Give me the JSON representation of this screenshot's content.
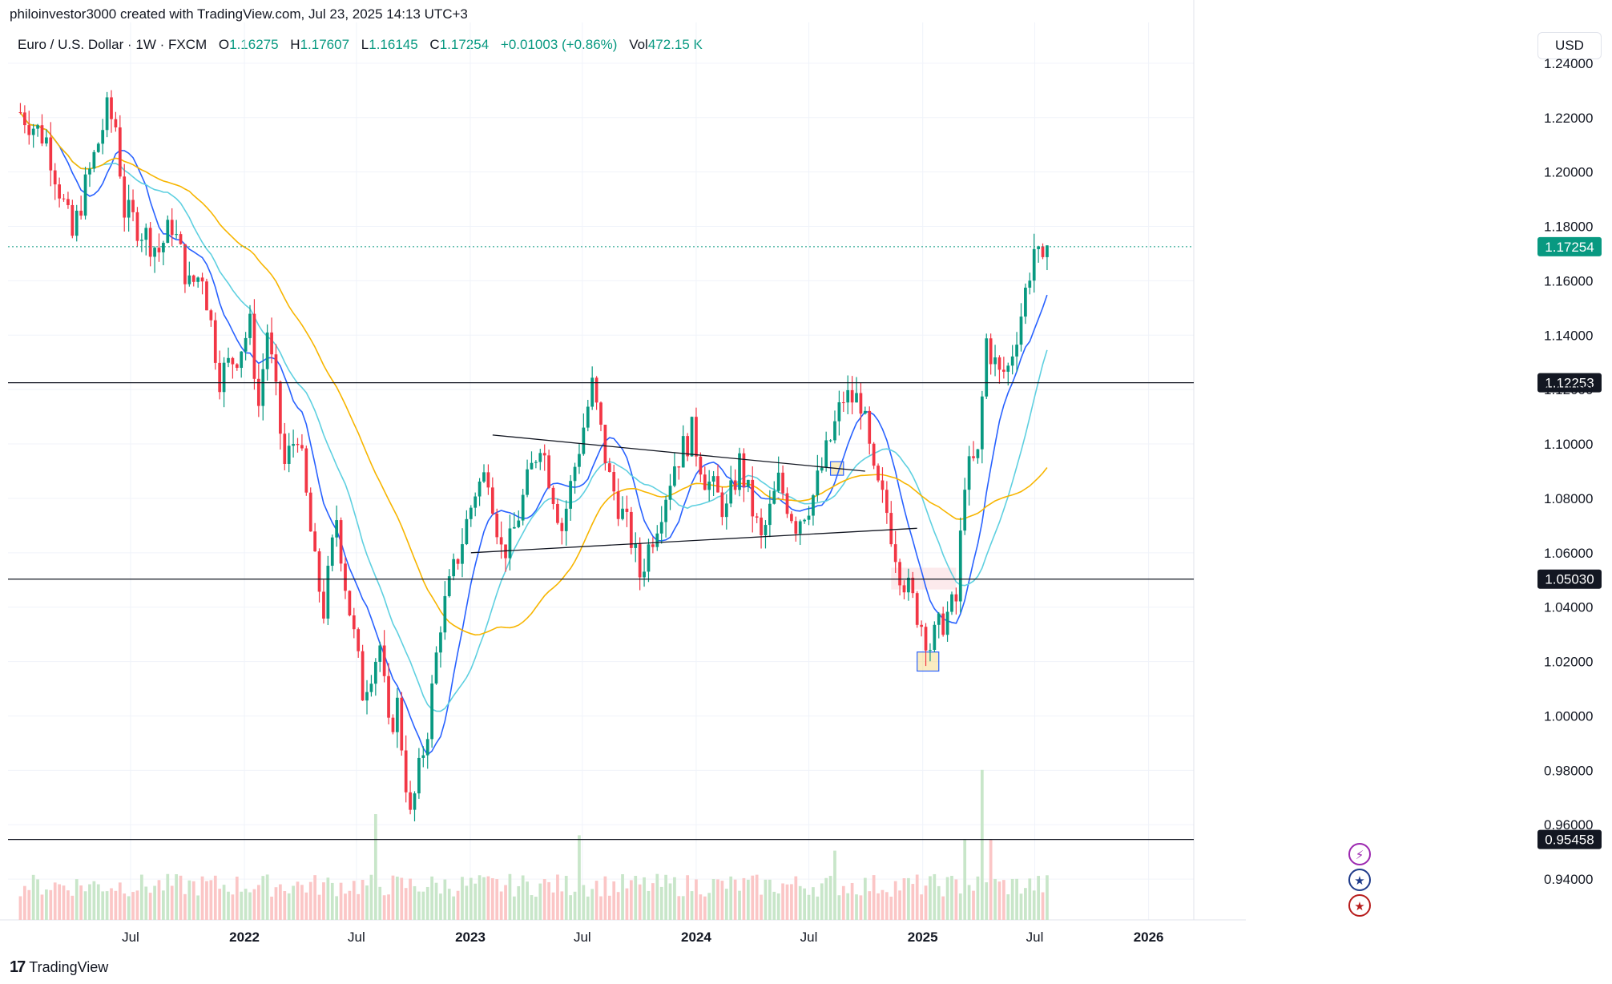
{
  "header": {
    "credit": "philoinvestor3000 created with TradingView.com, Jul 23, 2025 14:13 UTC+3",
    "symbol": "Euro / U.S. Dollar · 1W · FXCM",
    "ohlc": {
      "o_label": "O",
      "o": "1.16275",
      "h_label": "H",
      "h": "1.17607",
      "l_label": "L",
      "l": "1.16145",
      "c_label": "C",
      "c": "1.17254",
      "change": "+0.01003 (+0.86%)",
      "vol_label": "Vol",
      "vol": "472.15 K"
    },
    "currency": "USD"
  },
  "footer": {
    "brand": "TradingView",
    "logo_mark": "17"
  },
  "colors": {
    "up": "#089981",
    "down": "#f23645",
    "vol_up": "#c8e6c9",
    "vol_down": "#fbc6c6",
    "ma_fast": "#2962ff",
    "ma_mid": "#5fd0e0",
    "ma_slow": "#f7b500"
  },
  "chart_data": {
    "type": "candlestick",
    "title": "Euro / U.S. Dollar",
    "interval": "1W",
    "y_ticks": [
      "1.24000",
      "1.22000",
      "1.20000",
      "1.18000",
      "1.16000",
      "1.14000",
      "1.12000",
      "1.10000",
      "1.08000",
      "1.06000",
      "1.04000",
      "1.02000",
      "1.00000",
      "0.98000",
      "0.96000",
      "0.94000"
    ],
    "ylim": [
      0.925,
      1.255
    ],
    "x_ticks": [
      {
        "label": "Jul",
        "date": "2021-07-01",
        "bold": false
      },
      {
        "label": "2022",
        "date": "2022-01-01",
        "bold": true
      },
      {
        "label": "Jul",
        "date": "2022-07-01",
        "bold": false
      },
      {
        "label": "2023",
        "date": "2023-01-01",
        "bold": true
      },
      {
        "label": "Jul",
        "date": "2023-07-01",
        "bold": false
      },
      {
        "label": "2024",
        "date": "2024-01-01",
        "bold": true
      },
      {
        "label": "Jul",
        "date": "2024-07-01",
        "bold": false
      },
      {
        "label": "2025",
        "date": "2025-01-01",
        "bold": true
      },
      {
        "label": "Jul",
        "date": "2025-07-01",
        "bold": false
      },
      {
        "label": "2026",
        "date": "2026-01-01",
        "bold": true
      }
    ],
    "xlim": [
      "2020-12-15",
      "2026-03-15"
    ],
    "horizontal_levels": [
      {
        "value": 1.12253,
        "label": "1.12253"
      },
      {
        "value": 1.0503,
        "label": "1.05030"
      },
      {
        "value": 0.95458,
        "label": "0.95458"
      }
    ],
    "last_price": {
      "value": 1.17254,
      "label": "1.17254"
    },
    "trendlines": [
      {
        "from": [
          "2023-02-06",
          1.1033
        ],
        "to": [
          "2024-09-30",
          1.09
        ]
      },
      {
        "from": [
          "2023-01-02",
          1.06
        ],
        "to": [
          "2024-12-23",
          1.069
        ]
      }
    ],
    "highlight_boxes": [
      {
        "from": [
          "2024-08-05",
          1.0885
        ],
        "to": [
          "2024-08-26",
          1.0935
        ],
        "color": "#f2c94c"
      },
      {
        "from": [
          "2024-12-23",
          1.0165
        ],
        "to": [
          "2025-01-27",
          1.0235
        ],
        "color": "#f2c94c"
      },
      {
        "from": [
          "2024-11-11",
          1.0465
        ],
        "to": [
          "2025-02-24",
          1.0545
        ],
        "color": "#f7c3c8"
      }
    ],
    "price_path": [
      [
        "2021-01-04",
        1.222
      ],
      [
        "2021-02-15",
        1.212
      ],
      [
        "2021-03-29",
        1.176
      ],
      [
        "2021-04-12",
        1.189
      ],
      [
        "2021-05-24",
        1.222
      ],
      [
        "2021-06-07",
        1.217
      ],
      [
        "2021-06-21",
        1.186
      ],
      [
        "2021-08-16",
        1.171
      ],
      [
        "2021-09-06",
        1.181
      ],
      [
        "2021-10-04",
        1.158
      ],
      [
        "2021-10-25",
        1.163
      ],
      [
        "2021-11-22",
        1.125
      ],
      [
        "2021-12-20",
        1.133
      ],
      [
        "2022-01-10",
        1.143
      ],
      [
        "2022-01-24",
        1.114
      ],
      [
        "2022-02-07",
        1.142
      ],
      [
        "2022-03-07",
        1.092
      ],
      [
        "2022-03-28",
        1.105
      ],
      [
        "2022-04-25",
        1.055
      ],
      [
        "2022-05-09",
        1.039
      ],
      [
        "2022-05-30",
        1.073
      ],
      [
        "2022-06-13",
        1.049
      ],
      [
        "2022-07-11",
        1.009
      ],
      [
        "2022-08-08",
        1.026
      ],
      [
        "2022-08-22",
        0.994
      ],
      [
        "2022-09-05",
        1.004
      ],
      [
        "2022-09-26",
        0.962
      ],
      [
        "2022-10-24",
        0.996
      ],
      [
        "2022-11-14",
        1.035
      ],
      [
        "2022-12-12",
        1.059
      ],
      [
        "2023-01-09",
        1.083
      ],
      [
        "2023-01-30",
        1.09
      ],
      [
        "2023-02-20",
        1.061
      ],
      [
        "2023-03-06",
        1.063
      ],
      [
        "2023-04-24",
        1.102
      ],
      [
        "2023-05-29",
        1.069
      ],
      [
        "2023-06-19",
        1.092
      ],
      [
        "2023-07-17",
        1.121
      ],
      [
        "2023-08-14",
        1.087
      ],
      [
        "2023-09-18",
        1.065
      ],
      [
        "2023-10-02",
        1.052
      ],
      [
        "2023-10-30",
        1.072
      ],
      [
        "2023-11-27",
        1.093
      ],
      [
        "2023-12-25",
        1.104
      ],
      [
        "2024-01-15",
        1.088
      ],
      [
        "2024-02-19",
        1.075
      ],
      [
        "2024-03-11",
        1.093
      ],
      [
        "2024-04-15",
        1.064
      ],
      [
        "2024-05-13",
        1.086
      ],
      [
        "2024-06-10",
        1.071
      ],
      [
        "2024-07-08",
        1.081
      ],
      [
        "2024-08-26",
        1.117
      ],
      [
        "2024-09-23",
        1.116
      ],
      [
        "2024-10-14",
        1.087
      ],
      [
        "2024-11-04",
        1.075
      ],
      [
        "2024-11-25",
        1.054
      ],
      [
        "2024-12-16",
        1.042
      ],
      [
        "2025-01-13",
        1.026
      ],
      [
        "2025-02-03",
        1.035
      ],
      [
        "2025-02-24",
        1.042
      ],
      [
        "2025-03-10",
        1.088
      ],
      [
        "2025-03-31",
        1.095
      ],
      [
        "2025-04-14",
        1.138
      ],
      [
        "2025-05-05",
        1.125
      ],
      [
        "2025-05-19",
        1.128
      ],
      [
        "2025-06-09",
        1.148
      ],
      [
        "2025-06-30",
        1.172
      ],
      [
        "2025-07-14",
        1.163
      ],
      [
        "2025-07-21",
        1.173
      ]
    ],
    "price_noise": 0.012,
    "volume_max": 1.0,
    "volume_spikes": [
      [
        "2022-08-01",
        0.55
      ],
      [
        "2023-06-26",
        0.44
      ],
      [
        "2024-08-12",
        0.36
      ],
      [
        "2025-03-10",
        0.42
      ],
      [
        "2025-04-07",
        0.78
      ],
      [
        "2025-04-21",
        0.42
      ]
    ],
    "moving_averages": [
      {
        "period": 10,
        "color": "#2962ff"
      },
      {
        "period": 20,
        "color": "#5fd0e0"
      },
      {
        "period": 40,
        "color": "#f7b500"
      }
    ],
    "event_icons": [
      {
        "name": "flash-icon",
        "glyph": "⚡",
        "color": "#9c27b0"
      },
      {
        "name": "eu-flag-icon",
        "glyph": "★",
        "color": "#1e3a8a"
      },
      {
        "name": "us-flag-icon",
        "glyph": "★",
        "color": "#b71c1c"
      }
    ]
  }
}
